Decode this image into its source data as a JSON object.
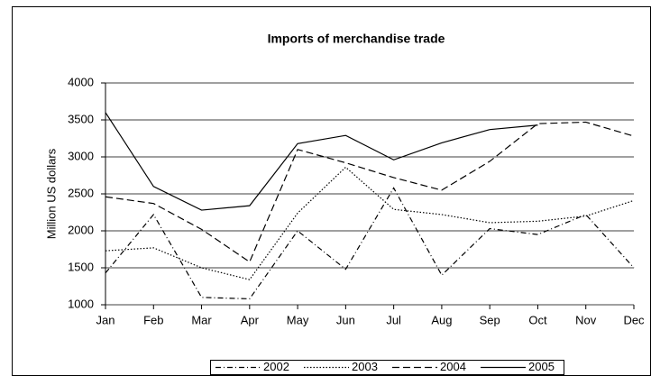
{
  "chart_data": {
    "type": "line",
    "title": "Imports of merchandise trade",
    "y_label": "Million US dollars",
    "categories": [
      "Jan",
      "Feb",
      "Mar",
      "Apr",
      "May",
      "Jun",
      "Jul",
      "Aug",
      "Sep",
      "Oct",
      "Nov",
      "Dec"
    ],
    "series": [
      {
        "name": "2002",
        "color": "#000000",
        "dash": "6 3 1 3",
        "values": [
          1430,
          2220,
          1100,
          1080,
          2000,
          1480,
          2580,
          1400,
          2030,
          1950,
          2220,
          1500
        ]
      },
      {
        "name": "2003",
        "color": "#000000",
        "dash": "1.5 2",
        "values": [
          1730,
          1770,
          1500,
          1340,
          2240,
          2860,
          2290,
          2220,
          2110,
          2130,
          2200,
          2410
        ]
      },
      {
        "name": "2004",
        "color": "#000000",
        "dash": "8 4",
        "values": [
          2460,
          2370,
          2020,
          1580,
          3100,
          2920,
          2720,
          2550,
          2940,
          3450,
          3470,
          3280
        ]
      },
      {
        "name": "2005",
        "color": "#000000",
        "dash": "none",
        "values": [
          3600,
          2600,
          2280,
          2340,
          3180,
          3290,
          2960,
          3190,
          3370,
          3430,
          null,
          null
        ]
      }
    ],
    "ylim": [
      1000,
      4000
    ],
    "yticks": [
      1000,
      1500,
      2000,
      2500,
      3000,
      3500,
      4000
    ],
    "grid": true,
    "legend": "bottom"
  }
}
